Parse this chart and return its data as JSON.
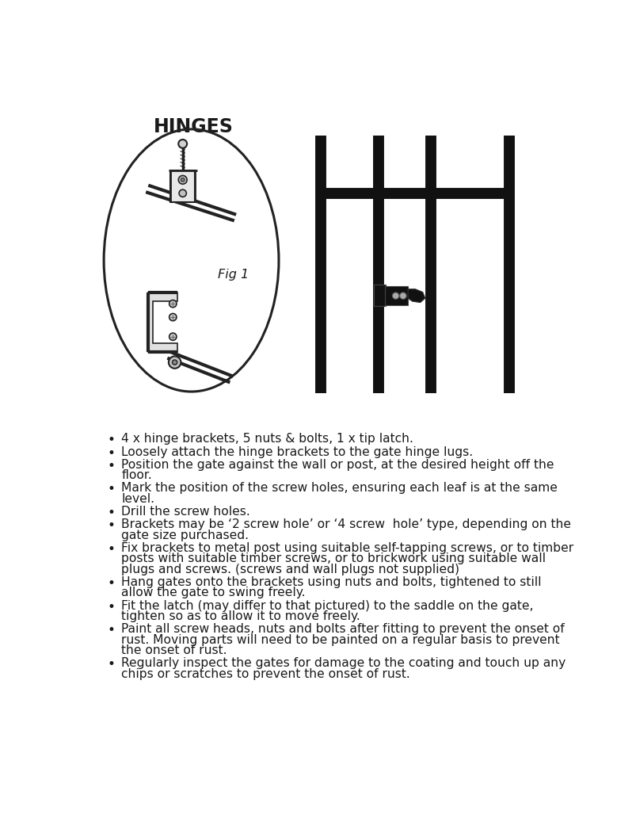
{
  "title": "HINGES",
  "fig1_label": "Fig 1",
  "background_color": "#ffffff",
  "bullet_points": [
    "4 x hinge brackets, 5 nuts & bolts, 1 x tip latch.",
    "Loosely attach the hinge brackets to the gate hinge lugs.",
    "Position the gate against the wall or post, at the desired height off the\nfloor.",
    "Mark the position of the screw holes, ensuring each leaf is at the same\nlevel.",
    "Drill the screw holes.",
    "Brackets may be ‘2 screw hole’ or ‘4 screw  hole’ type, depending on the\ngate size purchased.",
    "Fix brackets to metal post using suitable self-tapping screws, or to timber\nposts with suitable timber screws, or to brickwork using suitable wall\nplugs and screws. (screws and wall plugs not supplied)",
    "Hang gates onto the brackets using nuts and bolts, tightened to still\nallow the gate to swing freely.",
    "Fit the latch (may differ to that pictured) to the saddle on the gate,\ntighten so as to allow it to move freely.",
    "Paint all screw heads, nuts and bolts after fitting to prevent the onset of\nrust. Moving parts will need to be painted on a regular basis to prevent\nthe onset of rust.",
    "Regularly inspect the gates for damage to the coating and touch up any\nchips or scratches to prevent the onset of rust."
  ],
  "title_fontsize": 17,
  "body_fontsize": 11.2,
  "text_color": "#1a1a1a",
  "line_color": "#222222",
  "oval_color": "#222222",
  "gate_color": "#111111",
  "latch_color": "#111111"
}
